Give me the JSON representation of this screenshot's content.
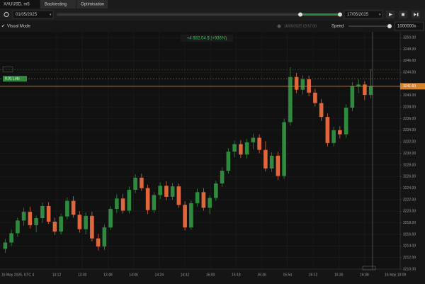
{
  "tabs": [
    "XAUUSD, m5",
    "Backtesting",
    "Optimisation"
  ],
  "toolbar": {
    "start_date": "01/05/2025",
    "end_date": "17/05/2025"
  },
  "options": {
    "visual_mode": "Visual Mode",
    "current_time": "16/05/2025 18:57:00",
    "speed_label": "Speed",
    "speed": "1000000x"
  },
  "chart_data": {
    "type": "candlestick",
    "profit_label": "+4 682.04 $ (+936%)",
    "position_label": "0.01 Lots",
    "position_price": 3242.9,
    "current_price": {
      "value": 3241.6,
      "label": "3241.60"
    },
    "x_start_label": "16 May 2025, UTC 4",
    "x_end_label": "16 May 18:09",
    "xticks": [
      "13:12",
      "13:30",
      "13:48",
      "14:06",
      "14:24",
      "14:42",
      "15:00",
      "15:18",
      "15:36",
      "15:54",
      "16:12",
      "16:30",
      "16:48"
    ],
    "up_color": "#2e8b3e",
    "down_color": "#e0663c",
    "ylim": [
      3210,
      3251
    ],
    "yticks": [
      {
        "value": 3210,
        "label": "3210.00"
      },
      {
        "value": 3212,
        "label": "3212.00"
      },
      {
        "value": 3214,
        "label": "3214.00"
      },
      {
        "value": 3216,
        "label": "3216.00"
      },
      {
        "value": 3218,
        "label": "3218.00"
      },
      {
        "value": 3220,
        "label": "3220.00"
      },
      {
        "value": 3222,
        "label": "3222.00"
      },
      {
        "value": 3224,
        "label": "3224.00"
      },
      {
        "value": 3226,
        "label": "3226.00"
      },
      {
        "value": 3228,
        "label": "3228.00"
      },
      {
        "value": 3230,
        "label": "3230.00"
      },
      {
        "value": 3232,
        "label": "3232.00"
      },
      {
        "value": 3234,
        "label": "3234.00"
      },
      {
        "value": 3236,
        "label": "3236.00"
      },
      {
        "value": 3238,
        "label": "3238.00"
      },
      {
        "value": 3240,
        "label": "3240.00"
      },
      {
        "value": 3244,
        "label": "3244.00"
      },
      {
        "value": 3246,
        "label": "3246.00"
      },
      {
        "value": 3248,
        "label": "3248.00"
      },
      {
        "value": 3250,
        "label": "3250.00"
      }
    ],
    "grid": true,
    "candles": [
      [
        3213.5,
        3215.2,
        3212.8,
        3214.6
      ],
      [
        3214.6,
        3216.8,
        3214.0,
        3216.2
      ],
      [
        3216.2,
        3218.9,
        3215.6,
        3218.4
      ],
      [
        3218.4,
        3220.6,
        3217.5,
        3219.9
      ],
      [
        3219.9,
        3220.8,
        3217.0,
        3217.6
      ],
      [
        3217.6,
        3219.2,
        3216.4,
        3218.8
      ],
      [
        3218.8,
        3221.5,
        3218.0,
        3220.9
      ],
      [
        3220.9,
        3221.6,
        3217.8,
        3218.2
      ],
      [
        3218.2,
        3218.9,
        3215.9,
        3216.5
      ],
      [
        3216.5,
        3219.6,
        3216.0,
        3219.1
      ],
      [
        3219.1,
        3222.4,
        3218.6,
        3221.8
      ],
      [
        3221.8,
        3222.6,
        3218.9,
        3219.4
      ],
      [
        3219.4,
        3220.0,
        3216.3,
        3216.9
      ],
      [
        3216.9,
        3219.8,
        3216.0,
        3219.2
      ],
      [
        3219.2,
        3219.9,
        3214.8,
        3215.3
      ],
      [
        3215.3,
        3216.1,
        3213.2,
        3213.9
      ],
      [
        3213.9,
        3217.7,
        3213.3,
        3217.2
      ],
      [
        3217.2,
        3220.9,
        3216.8,
        3220.4
      ],
      [
        3220.4,
        3222.9,
        3219.7,
        3222.2
      ],
      [
        3222.2,
        3223.0,
        3219.6,
        3220.1
      ],
      [
        3220.1,
        3224.3,
        3219.6,
        3223.7
      ],
      [
        3223.7,
        3226.4,
        3223.1,
        3225.8
      ],
      [
        3225.8,
        3226.5,
        3223.5,
        3224.0
      ],
      [
        3224.0,
        3224.6,
        3219.5,
        3220.2
      ],
      [
        3220.2,
        3223.3,
        3219.7,
        3222.8
      ],
      [
        3222.8,
        3225.0,
        3222.1,
        3224.4
      ],
      [
        3224.4,
        3225.2,
        3221.9,
        3222.5
      ],
      [
        3222.5,
        3224.9,
        3222.0,
        3224.3
      ],
      [
        3224.3,
        3224.8,
        3220.6,
        3221.1
      ],
      [
        3221.1,
        3221.7,
        3216.7,
        3217.2
      ],
      [
        3217.2,
        3221.9,
        3216.8,
        3221.4
      ],
      [
        3221.4,
        3223.9,
        3220.8,
        3223.3
      ],
      [
        3223.3,
        3224.0,
        3220.1,
        3220.6
      ],
      [
        3220.6,
        3222.8,
        3219.5,
        3222.3
      ],
      [
        3222.3,
        3225.3,
        3221.8,
        3224.8
      ],
      [
        3224.8,
        3227.6,
        3224.2,
        3227.0
      ],
      [
        3227.0,
        3230.9,
        3226.5,
        3230.3
      ],
      [
        3230.3,
        3232.2,
        3229.3,
        3231.6
      ],
      [
        3231.6,
        3232.3,
        3229.2,
        3229.8
      ],
      [
        3229.8,
        3232.5,
        3229.1,
        3231.9
      ],
      [
        3231.9,
        3233.4,
        3230.7,
        3232.7
      ],
      [
        3232.7,
        3233.3,
        3230.0,
        3230.6
      ],
      [
        3230.6,
        3232.1,
        3226.9,
        3227.4
      ],
      [
        3227.4,
        3230.2,
        3226.8,
        3229.6
      ],
      [
        3229.6,
        3230.3,
        3225.4,
        3226.1
      ],
      [
        3226.1,
        3236.0,
        3225.6,
        3235.4
      ],
      [
        3235.4,
        3244.9,
        3234.8,
        3243.2
      ],
      [
        3243.2,
        3243.9,
        3240.4,
        3241.0
      ],
      [
        3241.0,
        3243.5,
        3240.2,
        3242.8
      ],
      [
        3242.8,
        3243.4,
        3239.9,
        3240.5
      ],
      [
        3240.5,
        3241.2,
        3238.1,
        3238.7
      ],
      [
        3238.7,
        3239.4,
        3235.6,
        3236.3
      ],
      [
        3236.3,
        3236.9,
        3231.2,
        3231.8
      ],
      [
        3231.8,
        3234.6,
        3231.2,
        3234.0
      ],
      [
        3234.0,
        3234.7,
        3232.6,
        3233.3
      ],
      [
        3233.3,
        3238.5,
        3232.7,
        3237.9
      ],
      [
        3237.9,
        3242.3,
        3237.3,
        3241.6
      ],
      [
        3241.6,
        3242.8,
        3240.4,
        3241.9
      ],
      [
        3241.9,
        3242.5,
        3239.2,
        3240.1
      ],
      [
        3240.1,
        3244.6,
        3239.5,
        3241.6
      ]
    ]
  }
}
